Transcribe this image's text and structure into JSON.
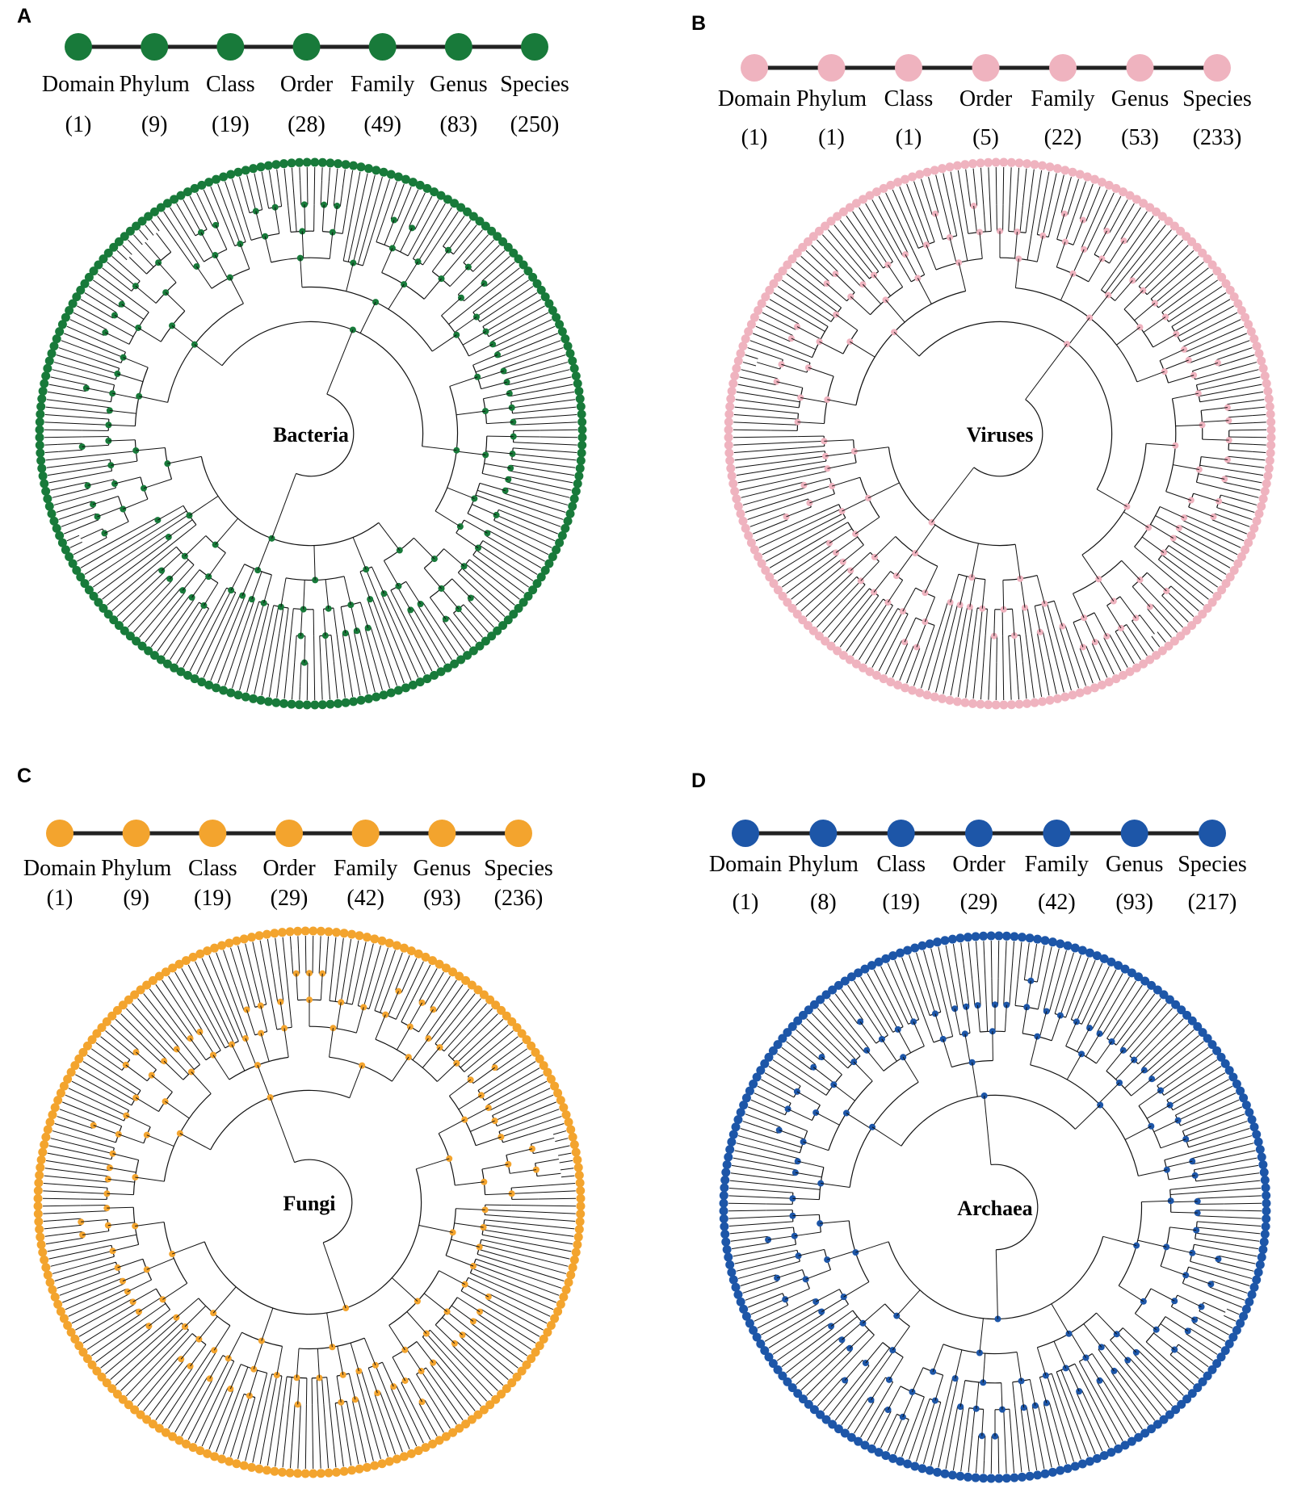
{
  "panels": [
    {
      "letter": "A",
      "root": "Bacteria",
      "color": "#187a3a",
      "ranks": [
        {
          "name": "Domain",
          "count": "(1)"
        },
        {
          "name": "Phylum",
          "count": "(9)"
        },
        {
          "name": "Class",
          "count": "(19)"
        },
        {
          "name": "Order",
          "count": "(28)"
        },
        {
          "name": "Family",
          "count": "(49)"
        },
        {
          "name": "Genus",
          "count": "(83)"
        },
        {
          "name": "Species",
          "count": "(250)"
        }
      ]
    },
    {
      "letter": "B",
      "root": "Viruses",
      "color": "#efb3bf",
      "ranks": [
        {
          "name": "Domain",
          "count": "(1)"
        },
        {
          "name": "Phylum",
          "count": "(1)"
        },
        {
          "name": "Class",
          "count": "(1)"
        },
        {
          "name": "Order",
          "count": "(5)"
        },
        {
          "name": "Family",
          "count": "(22)"
        },
        {
          "name": "Genus",
          "count": "(53)"
        },
        {
          "name": "Species",
          "count": "(233)"
        }
      ]
    },
    {
      "letter": "C",
      "root": "Fungi",
      "color": "#f3a42e",
      "ranks": [
        {
          "name": "Domain",
          "count": "(1)"
        },
        {
          "name": "Phylum",
          "count": "(9)"
        },
        {
          "name": "Class",
          "count": "(19)"
        },
        {
          "name": "Order",
          "count": "(29)"
        },
        {
          "name": "Family",
          "count": "(42)"
        },
        {
          "name": "Genus",
          "count": "(93)"
        },
        {
          "name": "Species",
          "count": "(236)"
        }
      ]
    },
    {
      "letter": "D",
      "root": "Archaea",
      "color": "#1d56a8",
      "ranks": [
        {
          "name": "Domain",
          "count": "(1)"
        },
        {
          "name": "Phylum",
          "count": "(8)"
        },
        {
          "name": "Class",
          "count": "(19)"
        },
        {
          "name": "Order",
          "count": "(29)"
        },
        {
          "name": "Family",
          "count": "(42)"
        },
        {
          "name": "Genus",
          "count": "(93)"
        },
        {
          "name": "Species",
          "count": "(217)"
        }
      ]
    }
  ]
}
